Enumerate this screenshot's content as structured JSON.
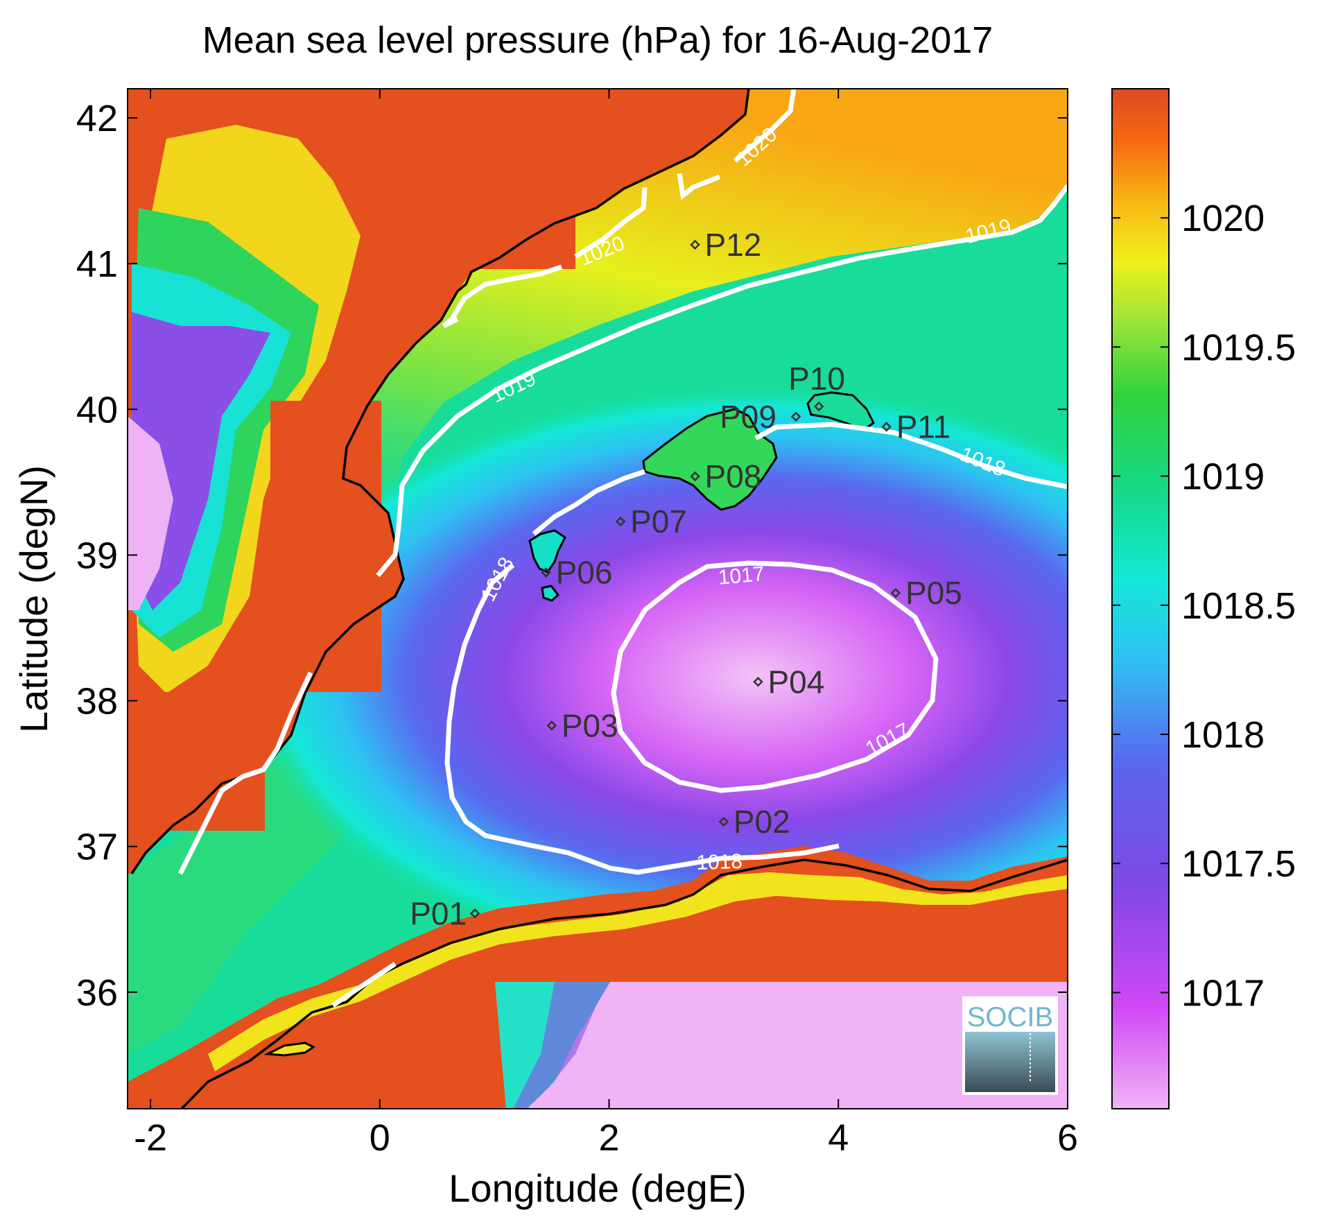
{
  "title": "Mean sea level pressure (hPa) for 16-Aug-2017",
  "logo_text": "SOCIB",
  "chart_data": {
    "type": "heatmap",
    "title": "Mean sea level pressure (hPa) for 16-Aug-2017",
    "xlabel": "Longitude (degE)",
    "ylabel": "Latitude (degN)",
    "xlim": [
      -2.2,
      6.0
    ],
    "ylim": [
      35.2,
      42.2
    ],
    "xticks": [
      -2,
      0,
      2,
      4,
      6
    ],
    "yticks": [
      36,
      37,
      38,
      39,
      40,
      41,
      42
    ],
    "colorbar": {
      "range": [
        1016.55,
        1020.5
      ],
      "ticks": [
        1017,
        1017.5,
        1018,
        1018.5,
        1019,
        1019.5,
        1020
      ],
      "colormap": [
        "#f0b4f6",
        "#cf48f5",
        "#7f48e6",
        "#5a67ef",
        "#2ec1f2",
        "#14e8d6",
        "#16d885",
        "#2fd23c",
        "#9ae43a",
        "#eff019",
        "#f9b514",
        "#f56712",
        "#dc4a24"
      ]
    },
    "pressure_low": {
      "center": [
        3.3,
        38.1
      ],
      "value": 1016.6
    },
    "contours": [
      {
        "level": 1017,
        "label": "1017"
      },
      {
        "level": 1018,
        "label": "1018"
      },
      {
        "level": 1019,
        "label": "1019"
      },
      {
        "level": 1020,
        "label": "1020"
      }
    ],
    "stations": [
      {
        "name": "P01",
        "lon": 0.83,
        "lat": 36.54
      },
      {
        "name": "P02",
        "lon": 3.0,
        "lat": 37.17
      },
      {
        "name": "P03",
        "lon": 1.5,
        "lat": 37.83
      },
      {
        "name": "P04",
        "lon": 3.3,
        "lat": 38.13
      },
      {
        "name": "P05",
        "lon": 4.5,
        "lat": 38.74
      },
      {
        "name": "P06",
        "lon": 1.45,
        "lat": 38.88
      },
      {
        "name": "P07",
        "lon": 2.1,
        "lat": 39.23
      },
      {
        "name": "P08",
        "lon": 2.75,
        "lat": 39.54
      },
      {
        "name": "P09",
        "lon": 3.63,
        "lat": 39.95
      },
      {
        "name": "P10",
        "lon": 3.83,
        "lat": 40.02
      },
      {
        "name": "P11",
        "lon": 4.42,
        "lat": 39.88
      },
      {
        "name": "P12",
        "lon": 2.75,
        "lat": 41.13
      }
    ]
  }
}
